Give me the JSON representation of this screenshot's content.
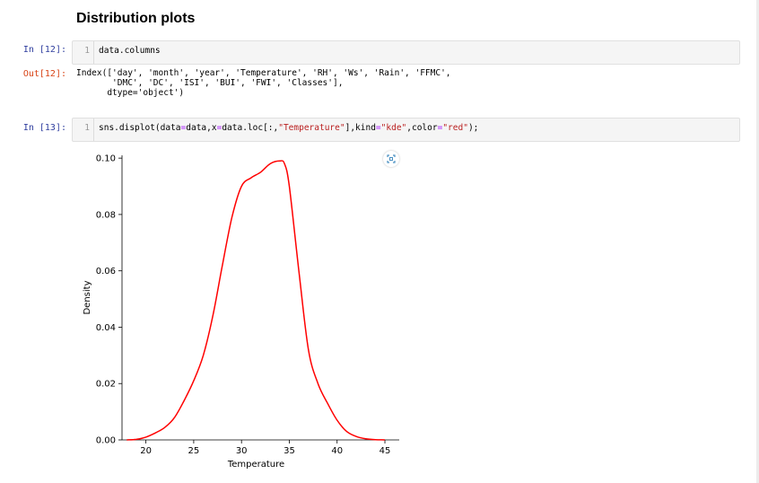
{
  "heading": "Distribution plots",
  "cells": [
    {
      "prompt": "In [12]:",
      "line_no": "1",
      "code": "data.columns"
    },
    {
      "out_prompt": "Out[12]:"
    },
    {
      "prompt": "In [13]:",
      "line_no": "1"
    }
  ],
  "output_lines": [
    "Index(['day', 'month', 'year', 'Temperature', 'RH', 'Ws', 'Rain', 'FFMC',",
    "       'DMC', 'DC', 'ISI', 'BUI', 'FWI', 'Classes'],",
    "      dtype='object')"
  ],
  "code13": {
    "p1": "sns.displot(data",
    "eq1": "=",
    "p2": "data,x",
    "eq2": "=",
    "p3": "data.loc[:,",
    "s1": "\"Temperature\"",
    "p4": "],kind",
    "eq3": "=",
    "s2": "\"kde\"",
    "p5": ",color",
    "eq4": "=",
    "s3": "\"red\"",
    "p6": ");"
  },
  "expand_icon": "expand-icon",
  "chart_data": {
    "type": "line",
    "xlabel": "Temperature",
    "ylabel": "Density",
    "xlim": [
      17.5,
      46.5
    ],
    "ylim": [
      0,
      0.101
    ],
    "xticks": [
      20,
      25,
      30,
      35,
      40,
      45
    ],
    "yticks": [
      0.0,
      0.02,
      0.04,
      0.06,
      0.08,
      0.1
    ],
    "ytick_labels": [
      "0.00",
      "0.02",
      "0.04",
      "0.06",
      "0.08",
      "0.10"
    ],
    "color": "#ff0000",
    "series": [
      {
        "x": [
          18,
          19,
          20,
          21,
          22,
          23,
          24,
          25,
          26,
          27,
          28,
          29,
          30,
          31,
          32,
          33,
          34,
          34.5,
          35,
          36,
          37,
          38,
          39,
          40,
          41,
          42,
          43,
          44,
          45
        ],
        "y": [
          0.0,
          0.0002,
          0.001,
          0.0025,
          0.0045,
          0.008,
          0.014,
          0.021,
          0.03,
          0.044,
          0.062,
          0.079,
          0.09,
          0.093,
          0.095,
          0.098,
          0.099,
          0.098,
          0.09,
          0.06,
          0.032,
          0.02,
          0.013,
          0.007,
          0.003,
          0.0012,
          0.0004,
          0.0001,
          0.0
        ]
      }
    ]
  }
}
